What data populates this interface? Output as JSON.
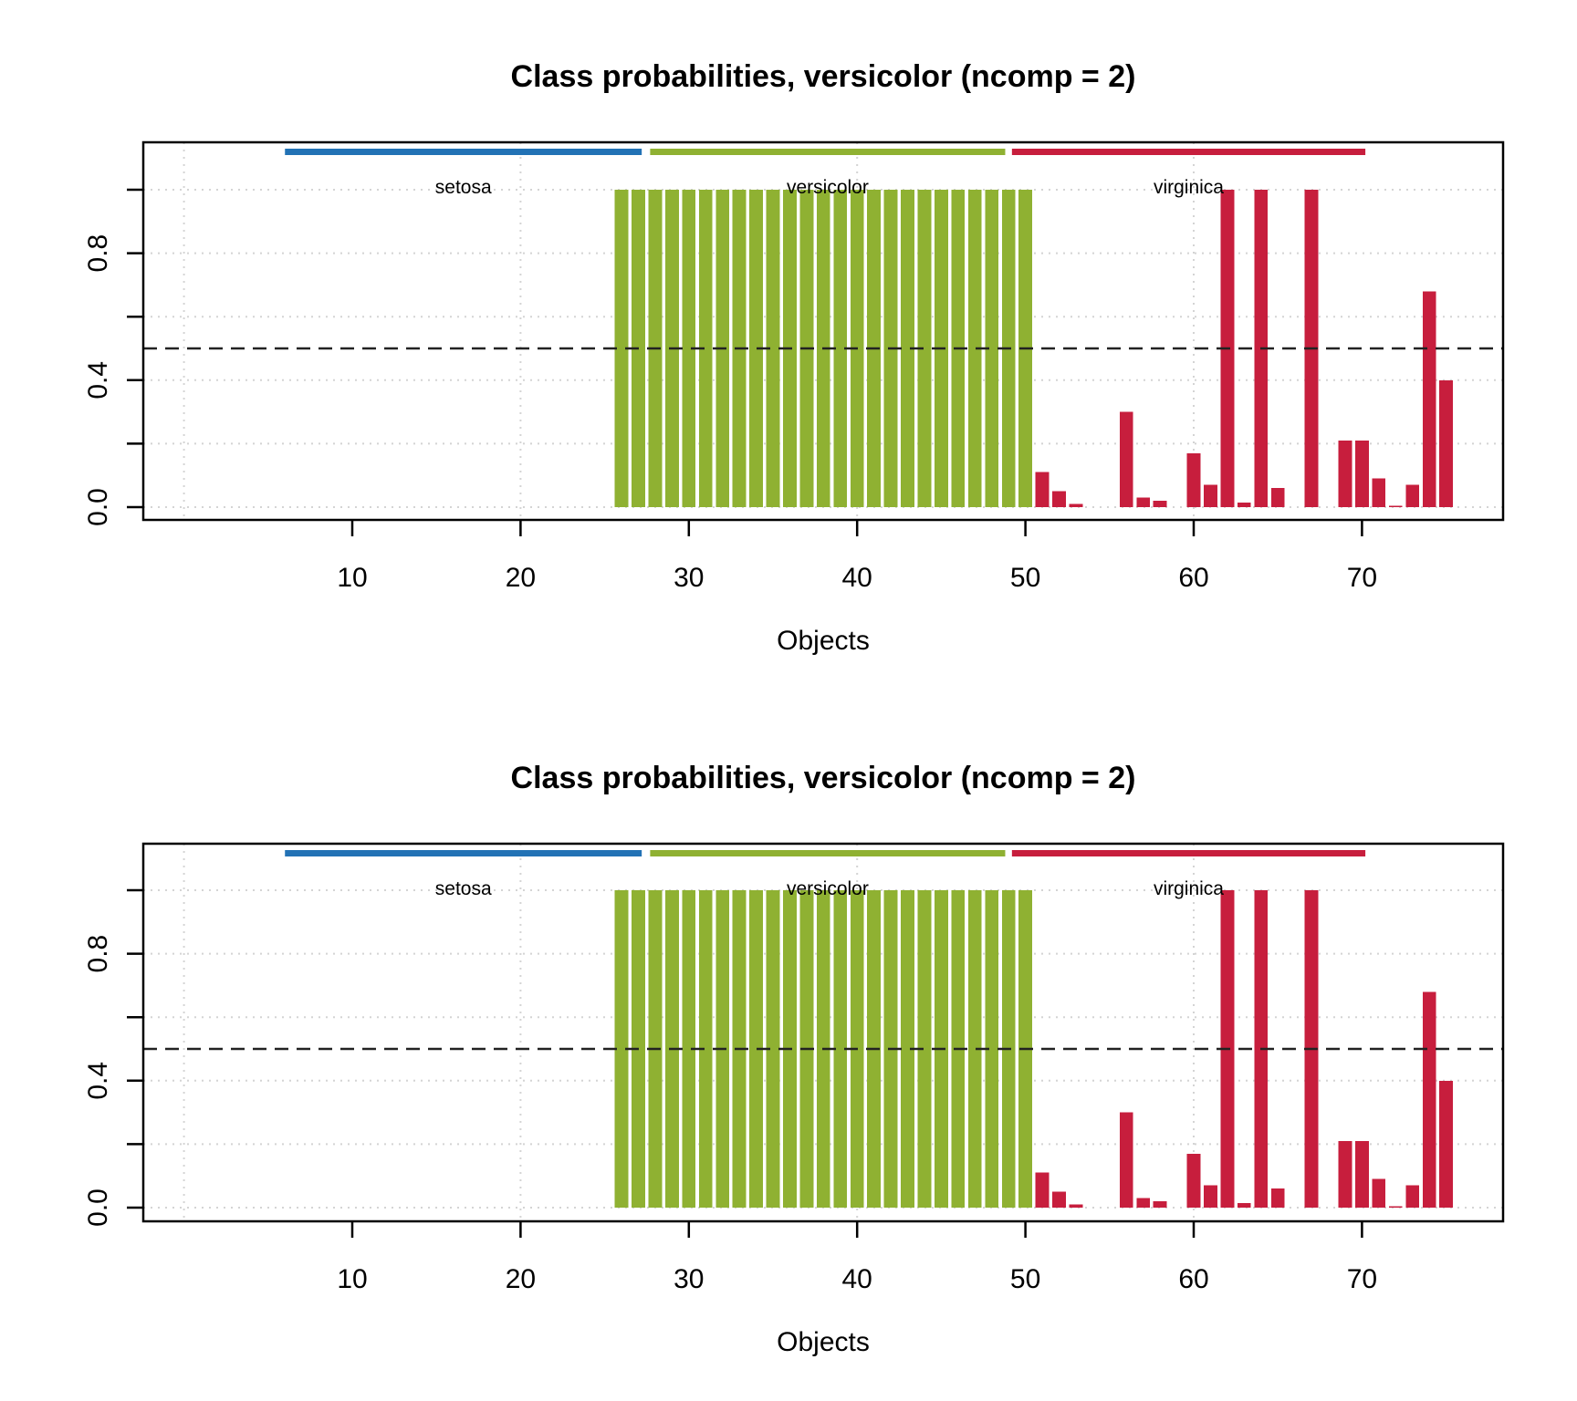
{
  "figure": {
    "background": "#ffffff",
    "panel_count": 2
  },
  "chart_data": {
    "type": "bar",
    "title": "Class probabilities, versicolor (ncomp = 2)",
    "xlabel": "Objects",
    "ylabel": "",
    "x": [
      1,
      2,
      3,
      4,
      5,
      6,
      7,
      8,
      9,
      10,
      11,
      12,
      13,
      14,
      15,
      16,
      17,
      18,
      19,
      20,
      21,
      22,
      23,
      24,
      25,
      26,
      27,
      28,
      29,
      30,
      31,
      32,
      33,
      34,
      35,
      36,
      37,
      38,
      39,
      40,
      41,
      42,
      43,
      44,
      45,
      46,
      47,
      48,
      49,
      50,
      51,
      52,
      53,
      54,
      55,
      56,
      57,
      58,
      59,
      60,
      61,
      62,
      63,
      64,
      65,
      66,
      67,
      68,
      69,
      70,
      71,
      72,
      73,
      74,
      75,
      76
    ],
    "values": [
      0,
      0,
      0,
      0,
      0,
      0,
      0,
      0,
      0,
      0,
      0,
      0,
      0,
      0,
      0,
      0,
      0,
      0,
      0,
      0,
      0,
      0,
      0,
      0,
      0,
      1,
      1,
      1,
      1,
      1,
      1,
      1,
      1,
      1,
      1,
      1,
      1,
      1,
      1,
      1,
      1,
      1,
      1,
      1,
      1,
      1,
      1,
      1,
      1,
      1,
      0.11,
      0.05,
      0.01,
      0,
      0,
      0.3,
      0.03,
      0.02,
      0,
      0.17,
      0.07,
      1,
      0.015,
      1,
      0.06,
      0,
      1,
      0,
      0.21,
      0.21,
      0.09,
      0.005,
      0.07,
      0.68,
      0.4,
      0
    ],
    "bar_classes": [
      {
        "class": "setosa",
        "from": 1,
        "to": 25,
        "color": "#2272B5"
      },
      {
        "class": "versicolor",
        "from": 26,
        "to": 50,
        "color": "#8FB132"
      },
      {
        "class": "virginica",
        "from": 51,
        "to": 76,
        "color": "#C71E3D"
      }
    ],
    "class_regions": [
      {
        "label": "setosa",
        "from": 6.0,
        "to": 27.2,
        "color": "#2272B5"
      },
      {
        "label": "versicolor",
        "from": 27.7,
        "to": 48.8,
        "color": "#8FB132"
      },
      {
        "label": "virginica",
        "from": 49.2,
        "to": 70.2,
        "color": "#C71E3D"
      }
    ],
    "x_ticks": [
      10,
      20,
      30,
      40,
      50,
      60,
      70
    ],
    "x_gridlines": [
      0,
      20,
      40,
      60
    ],
    "y_ticks": [
      0,
      0.2,
      0.4,
      0.6,
      0.8,
      1.0
    ],
    "y_tick_labels": [
      {
        "value": 0.0,
        "label": "0.0"
      },
      {
        "value": 0.4,
        "label": "0.4"
      },
      {
        "value": 0.8,
        "label": "0.8"
      }
    ],
    "y_gridlines": [
      0,
      0.2,
      0.4,
      0.6,
      0.8,
      1.0
    ],
    "threshold": 0.5,
    "xlim": [
      -2.4,
      78.4
    ],
    "ylim": [
      -0.04,
      1.15
    ],
    "grid": true,
    "legend_position": "none",
    "colors": {
      "grid": "#D4D4D4",
      "threshold_line": "#222222",
      "axis": "#000000",
      "class_label_text": "#A3A3A3",
      "tick_label_text": "#000000"
    }
  }
}
